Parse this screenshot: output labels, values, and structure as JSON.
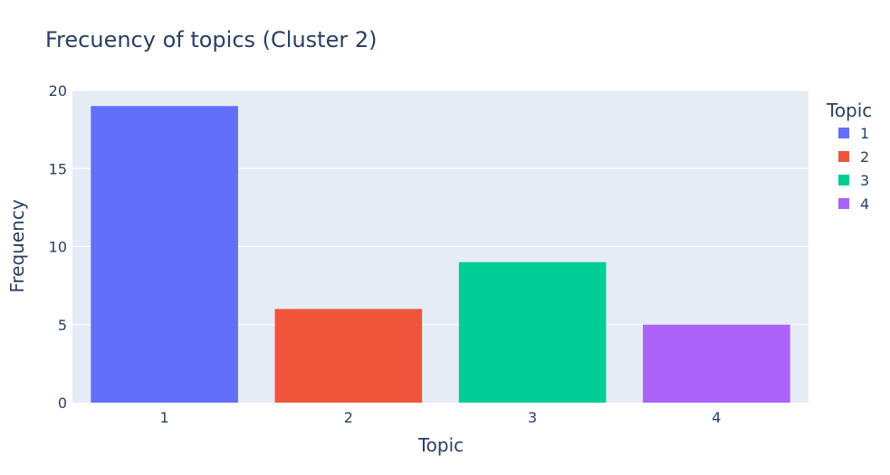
{
  "chart_data": {
    "type": "bar",
    "title": "Frecuency of topics (Cluster 2)",
    "xlabel": "Topic",
    "ylabel": "Frequency",
    "categories": [
      "1",
      "2",
      "3",
      "4"
    ],
    "values": [
      19,
      6,
      9,
      5
    ],
    "colors": [
      "#636efa",
      "#EF553B",
      "#00cc96",
      "#ab63fa"
    ],
    "ylim": [
      0,
      20
    ],
    "yticks": [
      0,
      5,
      10,
      15,
      20
    ],
    "grid": true,
    "plot_background": "#E5ECF6",
    "legend": {
      "title": "Topic",
      "placement": "right",
      "entries": [
        "1",
        "2",
        "3",
        "4"
      ]
    }
  }
}
